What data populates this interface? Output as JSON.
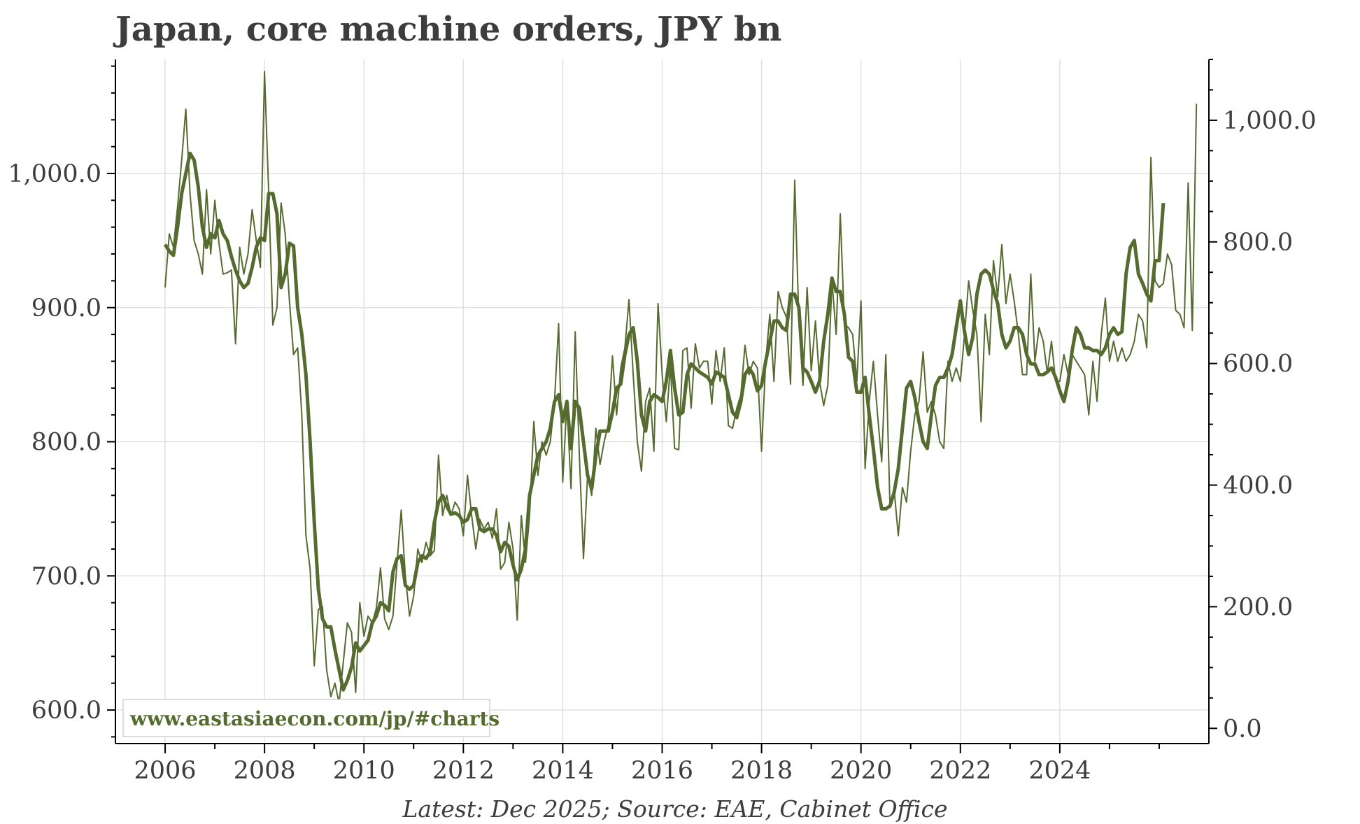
{
  "chart_data": {
    "type": "line",
    "title": "Japan, core machine orders, JPY bn",
    "source_note": "Latest: Dec 2025; Source: EAE, Cabinet Office",
    "watermark": "www.eastasiaecon.com/jp/#charts",
    "line_color": "#556b2f",
    "watermark_color": "#556b2f",
    "x_range": [
      2005.0,
      2027.0
    ],
    "x_ticks": [
      2006,
      2008,
      2010,
      2012,
      2014,
      2016,
      2018,
      2020,
      2022,
      2024
    ],
    "x_tick_labels": [
      "2006",
      "2008",
      "2010",
      "2012",
      "2014",
      "2016",
      "2018",
      "2020",
      "2022",
      "2024"
    ],
    "left_axis": {
      "range": [
        575,
        1085
      ],
      "ticks": [
        600,
        700,
        800,
        900,
        1000
      ],
      "tick_labels": [
        "600.0",
        "700.0",
        "800.0",
        "900.0",
        "1,000.0"
      ]
    },
    "right_axis": {
      "range": [
        -25,
        1100
      ],
      "ticks": [
        0,
        200,
        400,
        600,
        800,
        1000
      ],
      "tick_labels": [
        "0.0",
        "200.0",
        "400.0",
        "600.0",
        "800.0",
        "1,000.0"
      ]
    },
    "series": [
      {
        "style": "thin",
        "axis": "left",
        "start": 2006.0,
        "step": 0.083333,
        "values": [
          915,
          955,
          945,
          975,
          1010,
          1048,
          985,
          950,
          940,
          925,
          988,
          940,
          980,
          948,
          925,
          926,
          928,
          873,
          945,
          925,
          940,
          973,
          950,
          930,
          1076,
          985,
          887,
          900,
          978,
          955,
          905,
          865,
          870,
          820,
          730,
          705,
          633,
          675,
          677,
          630,
          610,
          620,
          605,
          635,
          665,
          658,
          613,
          680,
          655,
          670,
          665,
          676,
          706,
          668,
          660,
          670,
          710,
          749,
          700,
          670,
          685,
          720,
          710,
          725,
          715,
          719,
          790,
          745,
          760,
          745,
          755,
          750,
          730,
          775,
          745,
          720,
          742,
          735,
          740,
          728,
          750,
          705,
          710,
          740,
          720,
          667,
          745,
          710,
          745,
          815,
          775,
          800,
          790,
          800,
          830,
          888,
          770,
          830,
          765,
          882,
          790,
          713,
          775,
          760,
          810,
          783,
          800,
          813,
          864,
          820,
          855,
          870,
          906,
          850,
          800,
          778,
          830,
          840,
          793,
          903,
          850,
          815,
          857,
          795,
          794,
          868,
          870,
          825,
          873,
          855,
          860,
          860,
          828,
          868,
          845,
          870,
          812,
          810,
          825,
          835,
          872,
          850,
          860,
          855,
          793,
          860,
          895,
          845,
          912,
          900,
          893,
          843,
          995,
          890,
          842,
          915,
          853,
          890,
          845,
          827,
          842,
          920,
          880,
          970,
          888,
          885,
          880,
          845,
          905,
          780,
          830,
          860,
          820,
          785,
          865,
          753,
          765,
          730,
          766,
          755,
          793,
          820,
          830,
          867,
          822,
          830,
          820,
          800,
          795,
          860,
          845,
          855,
          845,
          880,
          920,
          898,
          880,
          815,
          895,
          865,
          935,
          908,
          947,
          903,
          925,
          905,
          880,
          850,
          850,
          925,
          860,
          885,
          875,
          851,
          875,
          845,
          845,
          865,
          850,
          865,
          860,
          855,
          850,
          820,
          860,
          830,
          880,
          907,
          860,
          875,
          860,
          870,
          860,
          865,
          875,
          895,
          890,
          870,
          1012,
          920,
          915,
          918,
          940,
          932,
          898,
          895,
          885,
          993,
          883,
          1052
        ]
      },
      {
        "style": "thick",
        "axis": "left",
        "start": 2006.0,
        "step": 0.083333,
        "values": [
          947,
          942,
          939,
          960,
          985,
          1000,
          1015,
          1010,
          990,
          960,
          945,
          955,
          952,
          965,
          955,
          950,
          938,
          928,
          920,
          915,
          918,
          930,
          945,
          952,
          950,
          985,
          985,
          970,
          915,
          925,
          948,
          946,
          900,
          880,
          850,
          800,
          740,
          690,
          668,
          662,
          662,
          645,
          630,
          615,
          622,
          632,
          650,
          644,
          648,
          652,
          665,
          670,
          680,
          678,
          674,
          703,
          713,
          715,
          693,
          690,
          693,
          710,
          715,
          713,
          718,
          740,
          755,
          760,
          752,
          746,
          747,
          745,
          740,
          742,
          750,
          750,
          735,
          733,
          735,
          735,
          730,
          718,
          725,
          722,
          708,
          697,
          705,
          720,
          760,
          775,
          790,
          795,
          800,
          810,
          830,
          835,
          815,
          830,
          795,
          830,
          825,
          800,
          775,
          765,
          790,
          808,
          808,
          808,
          822,
          840,
          843,
          865,
          880,
          885,
          860,
          820,
          808,
          830,
          835,
          833,
          830,
          845,
          868,
          840,
          820,
          822,
          850,
          858,
          855,
          852,
          850,
          848,
          843,
          852,
          850,
          848,
          835,
          822,
          818,
          830,
          850,
          855,
          850,
          838,
          842,
          860,
          875,
          890,
          890,
          885,
          883,
          910,
          910,
          900,
          855,
          852,
          845,
          837,
          845,
          875,
          895,
          922,
          912,
          912,
          895,
          863,
          860,
          837,
          837,
          848,
          820,
          795,
          766,
          750,
          750,
          752,
          762,
          780,
          810,
          840,
          845,
          833,
          815,
          800,
          795,
          820,
          842,
          848,
          848,
          855,
          865,
          885,
          905,
          882,
          865,
          878,
          910,
          925,
          928,
          925,
          913,
          903,
          880,
          870,
          875,
          885,
          885,
          880,
          865,
          858,
          858,
          850,
          850,
          852,
          855,
          848,
          838,
          830,
          845,
          868,
          885,
          880,
          870,
          870,
          868,
          868,
          865,
          870,
          880,
          885,
          880,
          882,
          925,
          945,
          950,
          925,
          918,
          910,
          905,
          935,
          935,
          978
        ]
      }
    ]
  }
}
